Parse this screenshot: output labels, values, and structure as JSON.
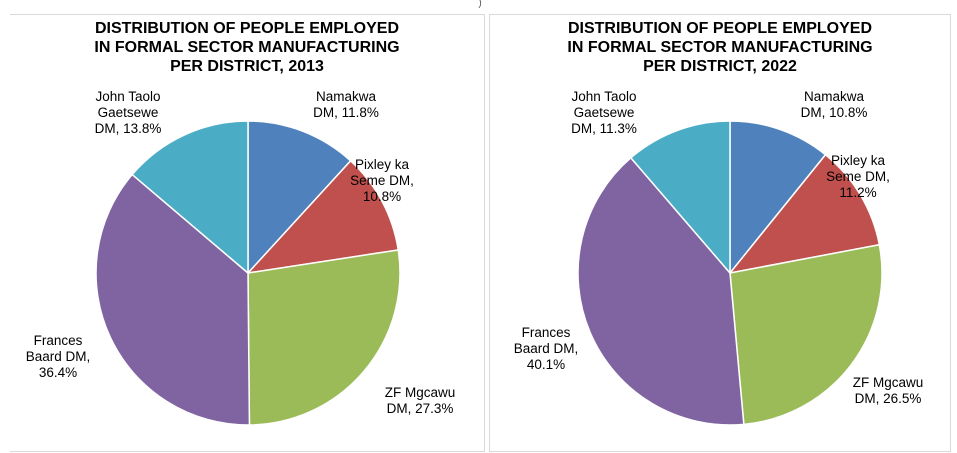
{
  "top_fragment": ")",
  "chart_data": [
    {
      "type": "pie",
      "title_lines": [
        "DISTRIBUTION OF PEOPLE EMPLOYED",
        "IN FORMAL SECTOR MANUFACTURING",
        "PER DISTRICT, 2013"
      ],
      "slices": [
        {
          "label_lines": [
            "Namakwa",
            "DM, 11.8%"
          ],
          "value": 11.8,
          "color": "#4f81bd"
        },
        {
          "label_lines": [
            "Pixley ka",
            "Seme DM,",
            "10.8%"
          ],
          "value": 10.8,
          "color": "#c0504d"
        },
        {
          "label_lines": [
            "ZF Mgcawu",
            "DM, 27.3%"
          ],
          "value": 27.3,
          "color": "#9bbb59"
        },
        {
          "label_lines": [
            "Frances",
            "Baard DM,",
            "36.4%"
          ],
          "value": 36.4,
          "color": "#8064a2"
        },
        {
          "label_lines": [
            "John Taolo",
            "Gaetsewe",
            "DM, 13.8%"
          ],
          "value": 13.8,
          "color": "#4bacc6"
        }
      ],
      "start": "12 o'clock",
      "direction": "clockwise"
    },
    {
      "type": "pie",
      "title_lines": [
        "DISTRIBUTION OF PEOPLE EMPLOYED",
        "IN FORMAL SECTOR MANUFACTURING",
        "PER DISTRICT, 2022"
      ],
      "slices": [
        {
          "label_lines": [
            "Namakwa",
            "DM, 10.8%"
          ],
          "value": 10.8,
          "color": "#4f81bd"
        },
        {
          "label_lines": [
            "Pixley ka",
            "Seme DM,",
            "11.2%"
          ],
          "value": 11.2,
          "color": "#c0504d"
        },
        {
          "label_lines": [
            "ZF Mgcawu",
            "DM, 26.5%"
          ],
          "value": 26.5,
          "color": "#9bbb59"
        },
        {
          "label_lines": [
            "Frances",
            "Baard DM,",
            "40.1%"
          ],
          "value": 40.1,
          "color": "#8064a2"
        },
        {
          "label_lines": [
            "John Taolo",
            "Gaetsewe",
            "DM, 11.3%"
          ],
          "value": 11.3,
          "color": "#4bacc6"
        }
      ],
      "start": "12 o'clock",
      "direction": "clockwise"
    }
  ]
}
